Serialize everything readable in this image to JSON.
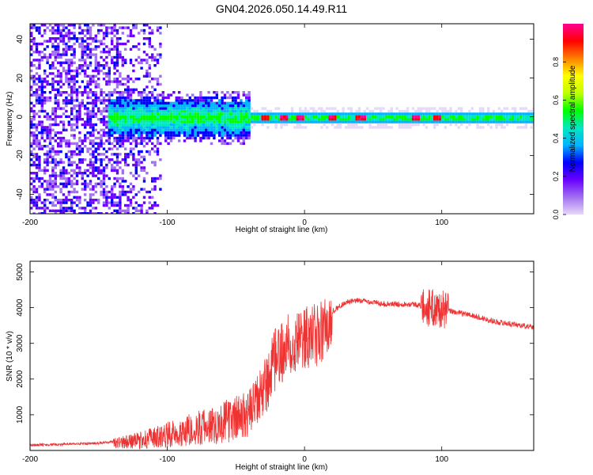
{
  "chart_data": [
    {
      "type": "heatmap",
      "title": "GN04.2026.050.14.49.R11",
      "xlabel": "Height of straight line (km)",
      "ylabel": "Frequency (Hz)",
      "xlim": [
        -200,
        167
      ],
      "ylim": [
        -50,
        48
      ],
      "xticks": [
        -200,
        -100,
        0,
        100
      ],
      "yticks": [
        -40,
        -20,
        0,
        20,
        40
      ],
      "xtick_labels": [
        "-200",
        "-100",
        "0",
        "100"
      ],
      "ytick_labels": [
        "-40",
        "-20",
        "0",
        "20",
        "40"
      ],
      "colorbar": {
        "label": "Normalized spectral amplitude",
        "range": [
          0,
          1
        ],
        "ticks": [
          0.0,
          0.2,
          0.4,
          0.6,
          0.8
        ],
        "tick_labels": [
          "0.0",
          "0.2",
          "0.4",
          "0.6",
          "0.8"
        ],
        "colors": [
          "#e8d8f8",
          "#a070f0",
          "#6a00ff",
          "#0000ff",
          "#00b4ff",
          "#00e8c0",
          "#00ff00",
          "#c0ff00",
          "#ffff00",
          "#ff8000",
          "#ff0000",
          "#ff0090"
        ]
      },
      "description_points": {
        "noise_region_x": [
          -200,
          -115
        ],
        "band_start_x": -145,
        "band_center_freq": 0,
        "hot_spots_x": [
          -30,
          -15,
          -5,
          20,
          40,
          80,
          95
        ]
      }
    },
    {
      "type": "line",
      "xlabel": "Height of straight line (km)",
      "ylabel": "SNR (10 * v/v)",
      "xlim": [
        -200,
        167
      ],
      "ylim": [
        0,
        5300
      ],
      "xticks": [
        -200,
        -100,
        0,
        100
      ],
      "yticks": [
        1000,
        2000,
        3000,
        4000,
        5000
      ],
      "xtick_labels": [
        "-200",
        "-100",
        "0",
        "100"
      ],
      "ytick_labels": [
        "1000",
        "2000",
        "3000",
        "4000",
        "5000"
      ],
      "series": [
        {
          "name": "SNR",
          "color": "#ee3333",
          "x": [
            -200,
            -150,
            -120,
            -100,
            -80,
            -60,
            -40,
            -30,
            -20,
            -10,
            0,
            10,
            20,
            30,
            40,
            60,
            80,
            90,
            100,
            120,
            140,
            167
          ],
          "y": [
            150,
            200,
            350,
            550,
            750,
            950,
            1250,
            1900,
            2900,
            3300,
            3400,
            3500,
            3900,
            4150,
            4200,
            4100,
            4100,
            4000,
            3950,
            3800,
            3600,
            3450
          ]
        }
      ]
    }
  ]
}
